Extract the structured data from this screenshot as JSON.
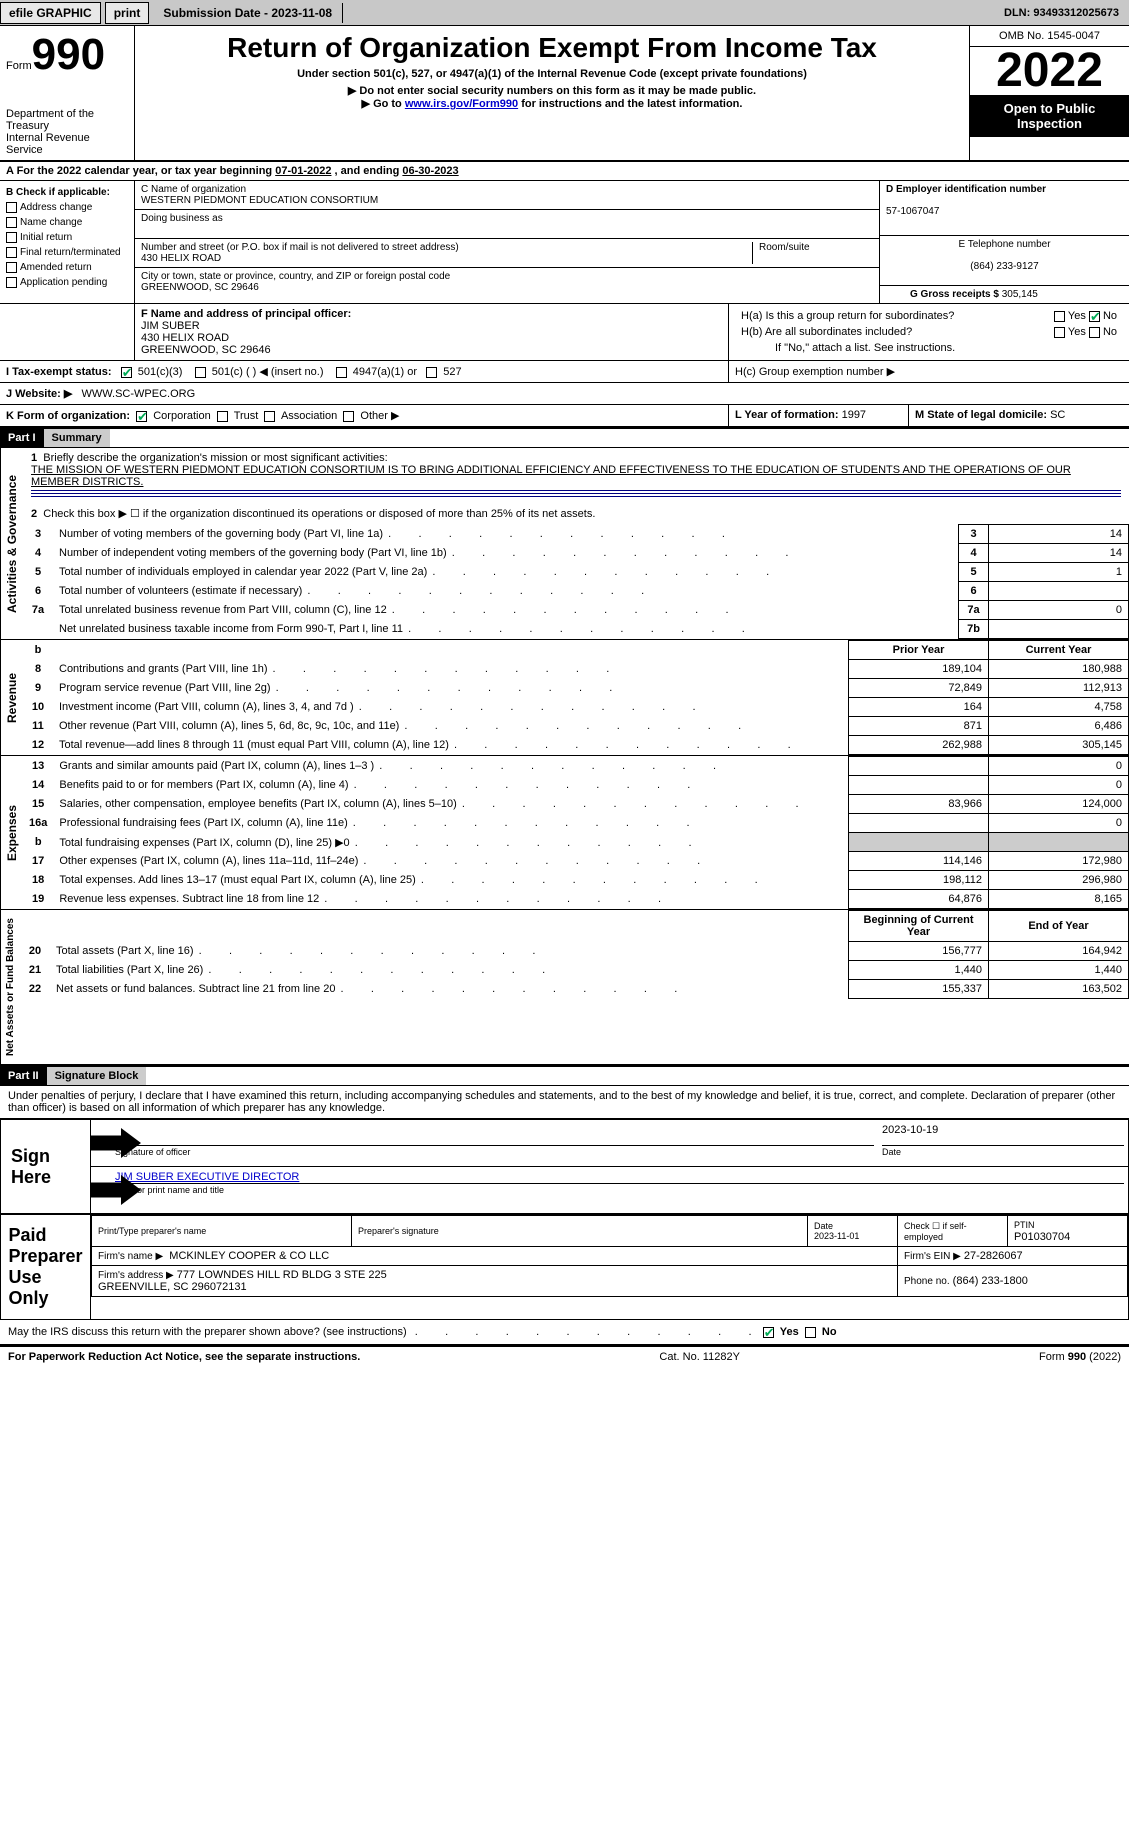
{
  "topbar": {
    "efile": "efile GRAPHIC",
    "print": "print",
    "submission_label": "Submission Date - 2023-11-08",
    "dln_label": "DLN: 93493312025673"
  },
  "header": {
    "form_word": "Form",
    "form_num": "990",
    "title": "Return of Organization Exempt From Income Tax",
    "subtitle": "Under section 501(c), 527, or 4947(a)(1) of the Internal Revenue Code (except private foundations)",
    "note1": "▶ Do not enter social security numbers on this form as it may be made public.",
    "note2_pre": "▶ Go to ",
    "note2_link": "www.irs.gov/Form990",
    "note2_post": " for instructions and the latest information.",
    "dept": "Department of the Treasury\nInternal Revenue Service",
    "omb": "OMB No. 1545-0047",
    "year": "2022",
    "otp": "Open to Public Inspection"
  },
  "lineA": {
    "text_pre": "A For the 2022 calendar year, or tax year beginning ",
    "begin": "07-01-2022",
    "mid": "   , and ending ",
    "end": "06-30-2023"
  },
  "sectionB": {
    "title": "B Check if applicable:",
    "items": [
      "Address change",
      "Name change",
      "Initial return",
      "Final return/terminated",
      "Amended return",
      "Application pending"
    ]
  },
  "sectionC": {
    "name_label": "C Name of organization",
    "name": "WESTERN PIEDMONT EDUCATION CONSORTIUM",
    "dba_label": "Doing business as",
    "street_label": "Number and street (or P.O. box if mail is not delivered to street address)",
    "room_label": "Room/suite",
    "street": "430 HELIX ROAD",
    "city_label": "City or town, state or province, country, and ZIP or foreign postal code",
    "city": "GREENWOOD, SC  29646"
  },
  "sectionD": {
    "label": "D Employer identification number",
    "value": "57-1067047",
    "tel_label": "E Telephone number",
    "tel": "(864) 233-9127",
    "gross_label": "G Gross receipts $",
    "gross": "305,145"
  },
  "sectionF": {
    "label": "F Name and address of principal officer:",
    "name": "JIM SUBER",
    "addr1": "430 HELIX ROAD",
    "addr2": "GREENWOOD, SC  29646"
  },
  "sectionH": {
    "a_label": "H(a)  Is this a group return for subordinates?",
    "b_label": "H(b)  Are all subordinates included?",
    "b_note": "If \"No,\" attach a list. See instructions.",
    "c_label": "H(c)  Group exemption number ▶",
    "yes": "Yes",
    "no": "No"
  },
  "sectionI": {
    "label": "I    Tax-exempt status:",
    "opt1": "501(c)(3)",
    "opt2": "501(c) (   ) ◀ (insert no.)",
    "opt3": "4947(a)(1) or",
    "opt4": "527"
  },
  "sectionJ": {
    "label": "J   Website: ▶",
    "value": "WWW.SC-WPEC.ORG"
  },
  "sectionK": {
    "label": "K Form of organization:",
    "opts": [
      "Corporation",
      "Trust",
      "Association",
      "Other ▶"
    ]
  },
  "sectionL": {
    "label": "L Year of formation:",
    "value": "1997"
  },
  "sectionM": {
    "label": "M State of legal domicile:",
    "value": "SC"
  },
  "part1": {
    "header": "Part I",
    "title": "Summary",
    "side1": "Activities & Governance",
    "side2": "Revenue",
    "side3": "Expenses",
    "side4": "Net Assets or Fund Balances",
    "q1_label": "Briefly describe the organization's mission or most significant activities:",
    "q1_text": "THE MISSION OF WESTERN PIEDMONT EDUCATION CONSORTIUM IS TO BRING ADDITIONAL EFFICIENCY AND EFFECTIVENESS TO THE EDUCATION OF STUDENTS AND THE OPERATIONS OF OUR MEMBER DISTRICTS.",
    "q2": "Check this box ▶ ☐  if the organization discontinued its operations or disposed of more than 25% of its net assets.",
    "rows_gov": [
      {
        "n": "3",
        "label": "Number of voting members of the governing body (Part VI, line 1a)",
        "ln": "3",
        "val": "14"
      },
      {
        "n": "4",
        "label": "Number of independent voting members of the governing body (Part VI, line 1b)",
        "ln": "4",
        "val": "14"
      },
      {
        "n": "5",
        "label": "Total number of individuals employed in calendar year 2022 (Part V, line 2a)",
        "ln": "5",
        "val": "1"
      },
      {
        "n": "6",
        "label": "Total number of volunteers (estimate if necessary)",
        "ln": "6",
        "val": ""
      },
      {
        "n": "7a",
        "label": "Total unrelated business revenue from Part VIII, column (C), line 12",
        "ln": "7a",
        "val": "0"
      },
      {
        "n": "",
        "label": "Net unrelated business taxable income from Form 990-T, Part I, line 11",
        "ln": "7b",
        "val": ""
      }
    ],
    "hdr_prior": "Prior Year",
    "hdr_curr": "Current Year",
    "rows_rev": [
      {
        "n": "8",
        "label": "Contributions and grants (Part VIII, line 1h)",
        "p": "189,104",
        "c": "180,988"
      },
      {
        "n": "9",
        "label": "Program service revenue (Part VIII, line 2g)",
        "p": "72,849",
        "c": "112,913"
      },
      {
        "n": "10",
        "label": "Investment income (Part VIII, column (A), lines 3, 4, and 7d )",
        "p": "164",
        "c": "4,758"
      },
      {
        "n": "11",
        "label": "Other revenue (Part VIII, column (A), lines 5, 6d, 8c, 9c, 10c, and 11e)",
        "p": "871",
        "c": "6,486"
      },
      {
        "n": "12",
        "label": "Total revenue—add lines 8 through 11 (must equal Part VIII, column (A), line 12)",
        "p": "262,988",
        "c": "305,145"
      }
    ],
    "rows_exp": [
      {
        "n": "13",
        "label": "Grants and similar amounts paid (Part IX, column (A), lines 1–3 )",
        "p": "",
        "c": "0"
      },
      {
        "n": "14",
        "label": "Benefits paid to or for members (Part IX, column (A), line 4)",
        "p": "",
        "c": "0"
      },
      {
        "n": "15",
        "label": "Salaries, other compensation, employee benefits (Part IX, column (A), lines 5–10)",
        "p": "83,966",
        "c": "124,000"
      },
      {
        "n": "16a",
        "label": "Professional fundraising fees (Part IX, column (A), line 11e)",
        "p": "",
        "c": "0"
      },
      {
        "n": "b",
        "label": "Total fundraising expenses (Part IX, column (D), line 25) ▶0",
        "p": "shade",
        "c": "shade"
      },
      {
        "n": "17",
        "label": "Other expenses (Part IX, column (A), lines 11a–11d, 11f–24e)",
        "p": "114,146",
        "c": "172,980"
      },
      {
        "n": "18",
        "label": "Total expenses. Add lines 13–17 (must equal Part IX, column (A), line 25)",
        "p": "198,112",
        "c": "296,980"
      },
      {
        "n": "19",
        "label": "Revenue less expenses. Subtract line 18 from line 12",
        "p": "64,876",
        "c": "8,165"
      }
    ],
    "hdr_beg": "Beginning of Current Year",
    "hdr_end": "End of Year",
    "rows_net": [
      {
        "n": "20",
        "label": "Total assets (Part X, line 16)",
        "p": "156,777",
        "c": "164,942"
      },
      {
        "n": "21",
        "label": "Total liabilities (Part X, line 26)",
        "p": "1,440",
        "c": "1,440"
      },
      {
        "n": "22",
        "label": "Net assets or fund balances. Subtract line 21 from line 20",
        "p": "155,337",
        "c": "163,502"
      }
    ]
  },
  "part2": {
    "header": "Part II",
    "title": "Signature Block",
    "decl": "Under penalties of perjury, I declare that I have examined this return, including accompanying schedules and statements, and to the best of my knowledge and belief, it is true, correct, and complete. Declaration of preparer (other than officer) is based on all information of which preparer has any knowledge.",
    "sign_here": "Sign Here",
    "sig_officer": "Signature of officer",
    "sig_date": "2023-10-19",
    "date_label": "Date",
    "officer_name": "JIM SUBER  EXECUTIVE DIRECTOR",
    "officer_label": "Type or print name and title",
    "paid": "Paid Preparer Use Only",
    "prep_name_label": "Print/Type preparer's name",
    "prep_sig_label": "Preparer's signature",
    "prep_date": "Date\n2023-11-01",
    "prep_check": "Check ☐ if self-employed",
    "ptin_label": "PTIN",
    "ptin": "P01030704",
    "firm_name_label": "Firm's name    ▶",
    "firm_name": "MCKINLEY COOPER & CO LLC",
    "firm_ein_label": "Firm's EIN ▶",
    "firm_ein": "27-2826067",
    "firm_addr_label": "Firm's address ▶",
    "firm_addr": "777 LOWNDES HILL RD BLDG 3 STE 225\nGREENVILLE, SC  296072131",
    "firm_phone_label": "Phone no.",
    "firm_phone": "(864) 233-1800",
    "discuss": "May the IRS discuss this return with the preparer shown above? (see instructions)"
  },
  "footer": {
    "left": "For Paperwork Reduction Act Notice, see the separate instructions.",
    "center": "Cat. No. 11282Y",
    "right": "Form 990 (2022)"
  }
}
